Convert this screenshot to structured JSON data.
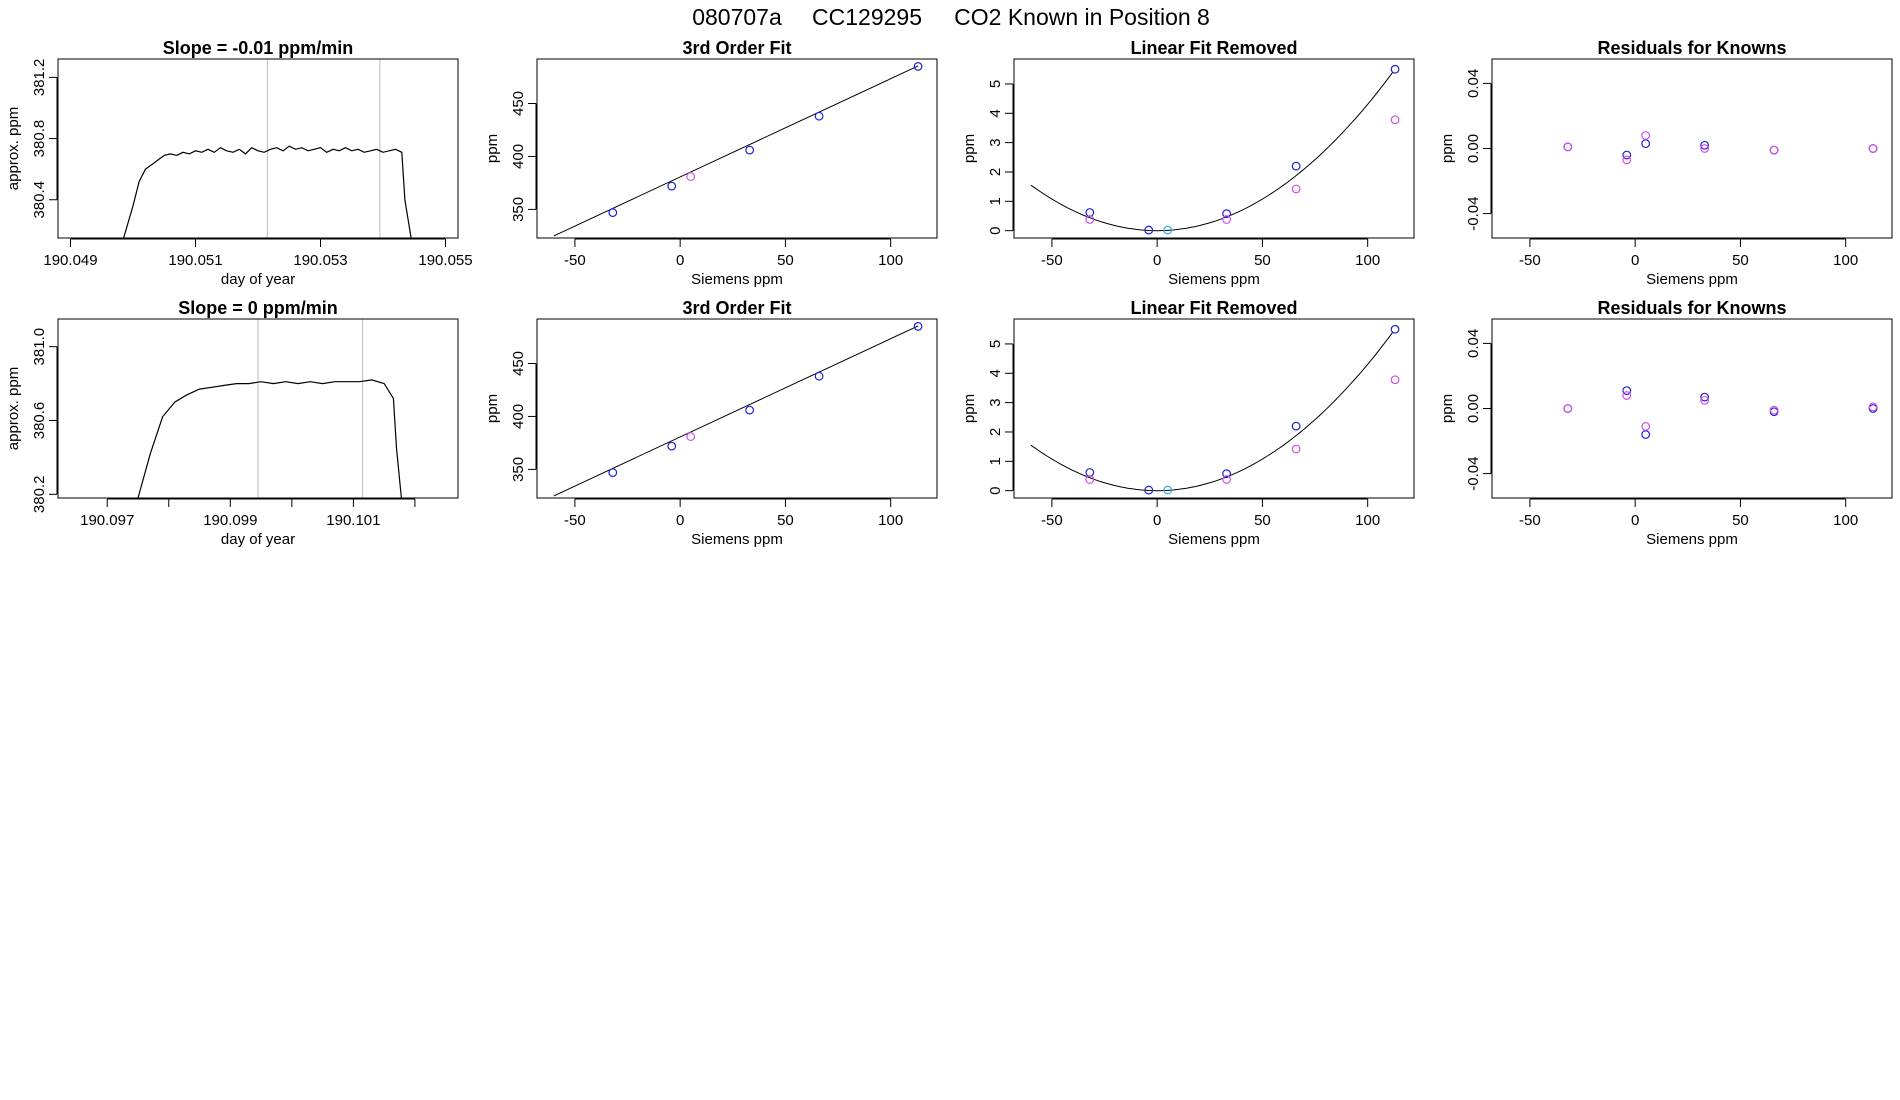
{
  "figure": {
    "title_parts": [
      "080707a",
      "CC129295",
      "CO2 Known in Position  8"
    ]
  },
  "colors": {
    "line": "#000000",
    "blue": "#1f1fd6",
    "magenta": "#d24fe6",
    "cyan": "#2bb0e0",
    "grid_vertical": "#bbbbbb",
    "frame": "#000000"
  },
  "chart_data": [
    {
      "type": "line",
      "title": "Slope =  -0.01  ppm/min",
      "xlabel": "day of year",
      "ylabel": "approx. ppm",
      "xlim": [
        190.0488,
        190.0552
      ],
      "ylim": [
        380.15,
        381.32
      ],
      "xticks": [
        190.049,
        190.051,
        190.053,
        190.055
      ],
      "xtick_labels": [
        "190.049",
        "190.051",
        "190.053",
        "190.055"
      ],
      "yticks": [
        380.4,
        380.8,
        381.2
      ],
      "ytick_labels": [
        "380.4",
        "380.8",
        "381.2"
      ],
      "vlines": [
        190.05215,
        190.05395
      ],
      "series": [
        {
          "name": "trace",
          "x": [
            190.04985,
            190.05,
            190.0501,
            190.0502,
            190.0503,
            190.0504,
            190.0505,
            190.0506,
            190.0507,
            190.0508,
            190.0509,
            190.051,
            190.0511,
            190.0512,
            190.0513,
            190.0514,
            190.0515,
            190.0516,
            190.0517,
            190.0518,
            190.0519,
            190.052,
            190.0521,
            190.0522,
            190.0523,
            190.0524,
            190.0525,
            190.0526,
            190.0527,
            190.0528,
            190.0529,
            190.053,
            190.0531,
            190.0532,
            190.0533,
            190.0534,
            190.0535,
            190.0536,
            190.0537,
            190.0538,
            190.0539,
            190.054,
            190.0541,
            190.0542,
            190.0543,
            190.05435,
            190.05445
          ],
          "values": [
            380.15,
            380.36,
            380.52,
            380.6,
            380.63,
            380.66,
            380.69,
            380.7,
            380.69,
            380.71,
            380.7,
            380.72,
            380.71,
            380.73,
            380.71,
            380.74,
            380.72,
            380.71,
            380.73,
            380.7,
            380.74,
            380.72,
            380.71,
            380.73,
            380.74,
            380.72,
            380.75,
            380.73,
            380.74,
            380.72,
            380.73,
            380.74,
            380.71,
            380.73,
            380.72,
            380.74,
            380.72,
            380.73,
            380.71,
            380.72,
            380.73,
            380.71,
            380.72,
            380.73,
            380.71,
            380.4,
            380.15
          ]
        }
      ]
    },
    {
      "type": "scatter",
      "title": "3rd Order Fit",
      "xlabel": "Siemens ppm",
      "ylabel": "ppm",
      "xlim": [
        -68,
        122
      ],
      "ylim": [
        323,
        492
      ],
      "xticks": [
        -50,
        0,
        50,
        100
      ],
      "xtick_labels": [
        "-50",
        "0",
        "50",
        "100"
      ],
      "yticks": [
        350,
        400,
        450
      ],
      "ytick_labels": [
        "350",
        "400",
        "450"
      ],
      "line": {
        "x": [
          -60,
          113
        ],
        "values": [
          325,
          485.5
        ]
      },
      "series": [
        {
          "name": "blue",
          "color_key": "blue",
          "x": [
            -32,
            -4,
            33,
            66,
            113
          ],
          "values": [
            347,
            372,
            406,
            438,
            485
          ]
        },
        {
          "name": "magenta",
          "color_key": "magenta",
          "x": [
            5
          ],
          "values": [
            381
          ]
        }
      ]
    },
    {
      "type": "scatter",
      "title": "Linear Fit Removed",
      "xlabel": "Siemens ppm",
      "ylabel": "ppm",
      "xlim": [
        -68,
        122
      ],
      "ylim": [
        -0.25,
        5.85
      ],
      "xticks": [
        -50,
        0,
        50,
        100
      ],
      "xtick_labels": [
        "-50",
        "0",
        "50",
        "100"
      ],
      "yticks": [
        0,
        1,
        2,
        3,
        4,
        5
      ],
      "ytick_labels": [
        "0",
        "1",
        "2",
        "3",
        "4",
        "5"
      ],
      "curve": {
        "type": "quadratic",
        "vertex_x": 0,
        "vertex_y": 0,
        "x_range": [
          -60,
          113
        ]
      },
      "series": [
        {
          "name": "blue",
          "color_key": "blue",
          "x": [
            -32,
            -4,
            33,
            66,
            113
          ],
          "values": [
            0.62,
            0.02,
            0.58,
            2.2,
            5.5
          ]
        },
        {
          "name": "magenta",
          "color_key": "magenta",
          "x": [
            -32,
            33,
            66,
            113
          ],
          "values": [
            0.38,
            0.38,
            1.42,
            3.78
          ]
        },
        {
          "name": "cyan",
          "color_key": "cyan",
          "x": [
            5
          ],
          "values": [
            0.02
          ]
        }
      ]
    },
    {
      "type": "scatter",
      "title": "Residuals for Knowns",
      "xlabel": "Siemens ppm",
      "ylabel": "ppm",
      "xlim": [
        -68,
        122
      ],
      "ylim": [
        -0.055,
        0.055
      ],
      "xticks": [
        -50,
        0,
        50,
        100
      ],
      "xtick_labels": [
        "-50",
        "0",
        "50",
        "100"
      ],
      "yticks": [
        -0.04,
        0,
        0.04
      ],
      "ytick_labels": [
        "-0.04",
        "0.00",
        "0.04"
      ],
      "series": [
        {
          "name": "blue",
          "color_key": "blue",
          "x": [
            -32,
            -4,
            5,
            33,
            66,
            113
          ],
          "values": [
            0.001,
            -0.004,
            0.003,
            0.002,
            -0.001,
            0.0
          ]
        },
        {
          "name": "magenta",
          "color_key": "magenta",
          "x": [
            -32,
            -4,
            5,
            33,
            66,
            113
          ],
          "values": [
            0.001,
            -0.007,
            0.008,
            0.0,
            -0.001,
            0.0
          ]
        }
      ]
    },
    {
      "type": "line",
      "title": "Slope =  0  ppm/min",
      "xlabel": "day of year",
      "ylabel": "approx. ppm",
      "xlim": [
        190.0962,
        190.1027
      ],
      "ylim": [
        380.18,
        381.15
      ],
      "xticks": [
        190.097,
        190.098,
        190.099,
        190.1,
        190.101,
        190.102
      ],
      "xtick_labels": [
        "190.097",
        "",
        "190.099",
        "",
        "190.101",
        ""
      ],
      "yticks": [
        380.2,
        380.6,
        381.0
      ],
      "ytick_labels": [
        "380.2",
        "380.6",
        "381.0"
      ],
      "vlines": [
        190.09945,
        190.10115
      ],
      "series": [
        {
          "name": "trace",
          "x": [
            190.0975,
            190.0977,
            190.0979,
            190.0981,
            190.0983,
            190.0985,
            190.0987,
            190.0989,
            190.0991,
            190.0993,
            190.0995,
            190.0997,
            190.0999,
            190.1001,
            190.1003,
            190.1005,
            190.1007,
            190.1009,
            190.1011,
            190.1013,
            190.1015,
            190.10165,
            190.1017,
            190.10178
          ],
          "values": [
            380.18,
            380.42,
            380.62,
            380.7,
            380.74,
            380.77,
            380.78,
            380.79,
            380.8,
            380.8,
            380.81,
            380.8,
            380.81,
            380.8,
            380.81,
            380.8,
            380.81,
            380.81,
            380.81,
            380.82,
            380.8,
            380.72,
            380.45,
            380.18
          ]
        }
      ]
    },
    {
      "type": "scatter",
      "title": "3rd Order Fit",
      "xlabel": "Siemens ppm",
      "ylabel": "ppm",
      "xlim": [
        -68,
        122
      ],
      "ylim": [
        323,
        492
      ],
      "xticks": [
        -50,
        0,
        50,
        100
      ],
      "xtick_labels": [
        "-50",
        "0",
        "50",
        "100"
      ],
      "yticks": [
        350,
        400,
        450
      ],
      "ytick_labels": [
        "350",
        "400",
        "450"
      ],
      "line": {
        "x": [
          -60,
          113
        ],
        "values": [
          325,
          485.5
        ]
      },
      "series": [
        {
          "name": "blue",
          "color_key": "blue",
          "x": [
            -32,
            -4,
            33,
            66,
            113
          ],
          "values": [
            347,
            372,
            406,
            438,
            485
          ]
        },
        {
          "name": "magenta",
          "color_key": "magenta",
          "x": [
            5
          ],
          "values": [
            381
          ]
        }
      ]
    },
    {
      "type": "scatter",
      "title": "Linear Fit Removed",
      "xlabel": "Siemens ppm",
      "ylabel": "ppm",
      "xlim": [
        -68,
        122
      ],
      "ylim": [
        -0.25,
        5.85
      ],
      "xticks": [
        -50,
        0,
        50,
        100
      ],
      "xtick_labels": [
        "-50",
        "0",
        "50",
        "100"
      ],
      "yticks": [
        0,
        1,
        2,
        3,
        4,
        5
      ],
      "ytick_labels": [
        "0",
        "1",
        "2",
        "3",
        "4",
        "5"
      ],
      "curve": {
        "type": "quadratic",
        "vertex_x": 0,
        "vertex_y": 0,
        "x_range": [
          -60,
          113
        ]
      },
      "series": [
        {
          "name": "blue",
          "color_key": "blue",
          "x": [
            -32,
            -4,
            33,
            66,
            113
          ],
          "values": [
            0.62,
            0.02,
            0.58,
            2.2,
            5.5
          ]
        },
        {
          "name": "magenta",
          "color_key": "magenta",
          "x": [
            -32,
            33,
            66,
            113
          ],
          "values": [
            0.38,
            0.38,
            1.42,
            3.78
          ]
        },
        {
          "name": "cyan",
          "color_key": "cyan",
          "x": [
            5
          ],
          "values": [
            0.02
          ]
        }
      ]
    },
    {
      "type": "scatter",
      "title": "Residuals for Knowns",
      "xlabel": "Siemens ppm",
      "ylabel": "ppm",
      "xlim": [
        -68,
        122
      ],
      "ylim": [
        -0.055,
        0.055
      ],
      "xticks": [
        -50,
        0,
        50,
        100
      ],
      "xtick_labels": [
        "-50",
        "0",
        "50",
        "100"
      ],
      "yticks": [
        -0.04,
        0,
        0.04
      ],
      "ytick_labels": [
        "-0.04",
        "0.00",
        "0.04"
      ],
      "series": [
        {
          "name": "blue",
          "color_key": "blue",
          "x": [
            -32,
            -4,
            5,
            33,
            66,
            113
          ],
          "values": [
            0.0,
            0.011,
            -0.016,
            0.007,
            -0.002,
            0.0
          ]
        },
        {
          "name": "magenta",
          "color_key": "magenta",
          "x": [
            -32,
            -4,
            5,
            33,
            66,
            113
          ],
          "values": [
            0.0,
            0.008,
            -0.011,
            0.005,
            -0.001,
            0.001
          ]
        }
      ]
    }
  ]
}
